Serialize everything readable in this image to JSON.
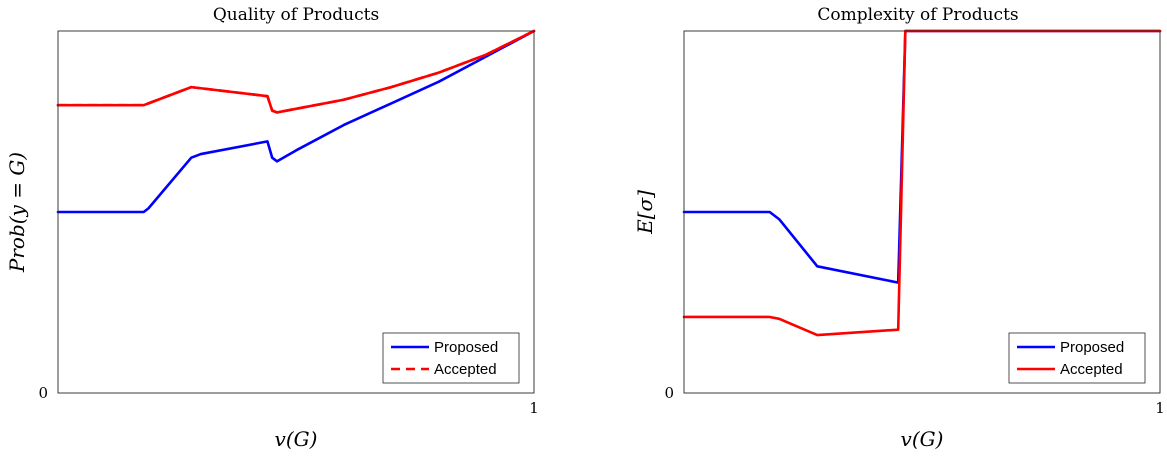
{
  "chart_data": [
    {
      "type": "line",
      "title": "Quality of Products",
      "xlabel": "v(G)",
      "ylabel": "Prob(y = G)",
      "xlim": [
        0,
        1
      ],
      "ylim": [
        0,
        1
      ],
      "x_ticks": [
        0,
        1
      ],
      "y_ticks": [
        0
      ],
      "x_tick_labels": [
        "",
        "1"
      ],
      "y_tick_labels": [
        "0"
      ],
      "grid": false,
      "legend_position": "bottom-right",
      "series": [
        {
          "name": "Proposed",
          "color": "#0000ff",
          "dash": "solid",
          "x": [
            0,
            0.18,
            0.19,
            0.28,
            0.3,
            0.44,
            0.45,
            0.46,
            0.5,
            0.6,
            0.7,
            0.8,
            0.9,
            1.0
          ],
          "y": [
            0.5,
            0.5,
            0.51,
            0.65,
            0.66,
            0.695,
            0.65,
            0.64,
            0.67,
            0.74,
            0.8,
            0.86,
            0.93,
            1.0
          ]
        },
        {
          "name": "Accepted",
          "color": "#ff0000",
          "dash": "dash",
          "x": [
            0,
            0.18,
            0.19,
            0.28,
            0.44,
            0.45,
            0.46,
            0.5,
            0.6,
            0.7,
            0.8,
            0.9,
            1.0
          ],
          "y": [
            0.795,
            0.795,
            0.8,
            0.845,
            0.82,
            0.78,
            0.775,
            0.785,
            0.81,
            0.845,
            0.885,
            0.935,
            1.0
          ]
        }
      ],
      "overlay": {
        "color": "#ff0000",
        "x": [
          0,
          0.18,
          0.19,
          0.28,
          0.44,
          0.45,
          0.46,
          0.5,
          0.6,
          0.7,
          0.8,
          0.9,
          1.0
        ],
        "y": [
          0.795,
          0.795,
          0.8,
          0.845,
          0.82,
          0.78,
          0.775,
          0.785,
          0.81,
          0.845,
          0.885,
          0.935,
          1.0
        ]
      }
    },
    {
      "type": "line",
      "title": "Complexity of Products",
      "xlabel": "v(G)",
      "ylabel": "E[σ]",
      "xlim": [
        0,
        1
      ],
      "ylim": [
        0,
        1
      ],
      "x_ticks": [
        0,
        1
      ],
      "y_ticks": [
        0
      ],
      "x_tick_labels": [
        "",
        "1"
      ],
      "y_tick_labels": [
        "0"
      ],
      "grid": false,
      "legend_position": "bottom-right",
      "series": [
        {
          "name": "Proposed",
          "color": "#0000ff",
          "dash": "solid",
          "x": [
            0,
            0.18,
            0.2,
            0.28,
            0.45,
            0.465,
            0.47,
            1.0
          ],
          "y": [
            0.5,
            0.5,
            0.48,
            0.35,
            0.305,
            1.0,
            1.0,
            1.0
          ]
        },
        {
          "name": "Accepted",
          "color": "#ff0000",
          "dash": "solid",
          "x": [
            0,
            0.18,
            0.2,
            0.28,
            0.45,
            0.465,
            0.47,
            1.0
          ],
          "y": [
            0.21,
            0.21,
            0.205,
            0.16,
            0.175,
            1.0,
            1.0,
            1.0
          ]
        }
      ]
    }
  ]
}
